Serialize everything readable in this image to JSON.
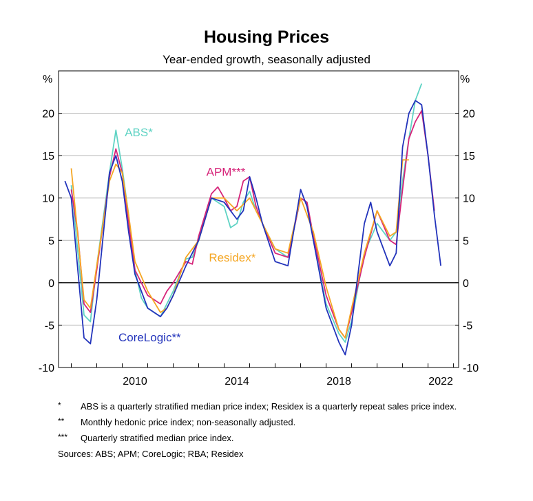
{
  "chart_data": {
    "type": "line",
    "title": "Housing Prices",
    "subtitle": "Year-ended growth, seasonally adjusted",
    "ylabel_left": "%",
    "ylabel_right": "%",
    "ylim": [
      -10,
      25
    ],
    "yticks": [
      -10,
      -5,
      0,
      5,
      10,
      15,
      20
    ],
    "ytick_labels": [
      "-10",
      "-5",
      "0",
      "5",
      "10",
      "15",
      "20"
    ],
    "xlim": [
      2007.5,
      2023.2
    ],
    "xticks": [
      2010,
      2014,
      2018,
      2022
    ],
    "xtick_labels": [
      "2010",
      "2014",
      "2018",
      "2022"
    ],
    "grid": true,
    "series": [
      {
        "name": "ABS*",
        "color": "#5fd3c4",
        "x": [
          2008.0,
          2008.5,
          2008.75,
          2009.0,
          2009.5,
          2009.75,
          2010.0,
          2010.25,
          2010.5,
          2010.75,
          2011.0,
          2011.5,
          2011.75,
          2012.0,
          2012.5,
          2012.75,
          2013.0,
          2013.5,
          2014.0,
          2014.25,
          2014.5,
          2014.75,
          2015.0,
          2015.25,
          2015.5,
          2016.0,
          2016.5,
          2017.0,
          2017.25,
          2017.5,
          2018.0,
          2018.5,
          2018.75,
          2019.0,
          2019.5,
          2020.0,
          2020.5,
          2020.75,
          2021.0,
          2021.25,
          2021.5,
          2021.75
        ],
        "values": [
          11.5,
          -3.8,
          -4.6,
          2.0,
          13.0,
          18.0,
          13.5,
          8.0,
          1.5,
          -1.8,
          -3.0,
          -4.0,
          -2.5,
          -1.0,
          2.8,
          3.0,
          5.0,
          10.0,
          9.0,
          6.5,
          7.0,
          9.5,
          10.8,
          8.5,
          7.0,
          4.0,
          3.0,
          10.0,
          9.5,
          5.0,
          -2.5,
          -6.0,
          -7.0,
          -4.5,
          3.5,
          7.0,
          5.0,
          6.0,
          12.0,
          17.0,
          21.5,
          23.5
        ]
      },
      {
        "name": "APM***",
        "color": "#d6257a",
        "x": [
          2008.0,
          2008.25,
          2008.5,
          2008.75,
          2009.0,
          2009.5,
          2009.75,
          2010.0,
          2010.25,
          2010.5,
          2011.0,
          2011.5,
          2011.75,
          2012.0,
          2012.5,
          2012.75,
          2013.0,
          2013.5,
          2013.75,
          2014.0,
          2014.25,
          2014.5,
          2014.75,
          2015.0,
          2015.25,
          2015.5,
          2016.0,
          2016.5,
          2017.0,
          2017.25,
          2017.5,
          2018.0,
          2018.5,
          2018.75,
          2019.0,
          2019.5,
          2020.0,
          2020.5,
          2020.75,
          2021.0,
          2021.25,
          2021.5,
          2021.75,
          2022.0,
          2022.25
        ],
        "values": [
          11.0,
          6.0,
          -2.5,
          -3.5,
          1.5,
          12.5,
          15.8,
          13.0,
          7.0,
          1.5,
          -1.5,
          -2.5,
          -1.0,
          0.0,
          2.5,
          2.2,
          5.5,
          10.5,
          11.3,
          10.0,
          8.5,
          9.0,
          12.0,
          12.5,
          9.0,
          7.0,
          3.5,
          3.0,
          10.0,
          9.5,
          5.5,
          -1.5,
          -5.5,
          -6.5,
          -3.5,
          3.0,
          8.5,
          5.0,
          4.5,
          11.0,
          17.0,
          19.0,
          20.3,
          15.0,
          8.5
        ]
      },
      {
        "name": "Residex*",
        "color": "#f5a623",
        "x": [
          2008.0,
          2008.5,
          2008.75,
          2009.0,
          2009.5,
          2009.75,
          2010.0,
          2010.25,
          2010.5,
          2011.0,
          2011.5,
          2011.75,
          2012.0,
          2012.5,
          2013.0,
          2013.5,
          2014.0,
          2014.5,
          2015.0,
          2015.25,
          2015.5,
          2016.0,
          2016.5,
          2017.0,
          2017.5,
          2018.0,
          2018.5,
          2018.75,
          2019.0,
          2019.5,
          2020.0,
          2020.5,
          2020.75,
          2021.0,
          2021.25
        ],
        "values": [
          13.5,
          -2.0,
          -3.0,
          2.0,
          12.0,
          14.0,
          13.0,
          8.0,
          2.5,
          -1.0,
          -3.5,
          -3.0,
          -1.5,
          3.0,
          5.0,
          10.0,
          10.0,
          8.5,
          10.0,
          8.5,
          7.0,
          4.0,
          3.5,
          10.0,
          6.0,
          -0.5,
          -5.5,
          -6.5,
          -3.0,
          3.5,
          8.5,
          5.5,
          6.0,
          14.5,
          14.5
        ]
      },
      {
        "name": "CoreLogic**",
        "color": "#2233bb",
        "x": [
          2007.75,
          2008.0,
          2008.5,
          2008.75,
          2009.0,
          2009.5,
          2009.75,
          2010.0,
          2010.25,
          2010.5,
          2011.0,
          2011.5,
          2011.75,
          2012.0,
          2012.5,
          2013.0,
          2013.5,
          2014.0,
          2014.5,
          2014.75,
          2015.0,
          2015.25,
          2015.5,
          2016.0,
          2016.5,
          2017.0,
          2017.25,
          2017.5,
          2018.0,
          2018.5,
          2018.75,
          2019.0,
          2019.5,
          2019.75,
          2020.0,
          2020.5,
          2020.75,
          2021.0,
          2021.25,
          2021.5,
          2021.75,
          2022.0,
          2022.25,
          2022.5
        ],
        "values": [
          12.0,
          10.0,
          -6.5,
          -7.2,
          -2.0,
          13.0,
          15.0,
          12.0,
          6.0,
          1.0,
          -3.0,
          -4.0,
          -3.0,
          -1.5,
          2.0,
          5.0,
          10.0,
          9.5,
          7.5,
          8.5,
          12.5,
          10.0,
          7.0,
          2.5,
          2.0,
          11.0,
          9.0,
          5.0,
          -3.0,
          -7.0,
          -8.5,
          -5.0,
          7.0,
          9.5,
          6.0,
          2.0,
          3.5,
          16.0,
          20.0,
          21.5,
          21.0,
          15.0,
          8.0,
          2.0
        ]
      }
    ],
    "labels": [
      {
        "text": "ABS*",
        "series": 0
      },
      {
        "text": "APM***",
        "series": 1
      },
      {
        "text": "Residex*",
        "series": 2
      },
      {
        "text": "CoreLogic**",
        "series": 3
      }
    ]
  },
  "notes": [
    {
      "mark": "*",
      "text": "ABS is a quarterly stratified median price index; Residex is a quarterly repeat sales price index."
    },
    {
      "mark": "**",
      "text": "Monthly hedonic price index; non-seasonally adjusted."
    },
    {
      "mark": "***",
      "text": "Quarterly stratified median price index."
    }
  ],
  "sources": "Sources: ABS; APM; CoreLogic; RBA; Residex"
}
